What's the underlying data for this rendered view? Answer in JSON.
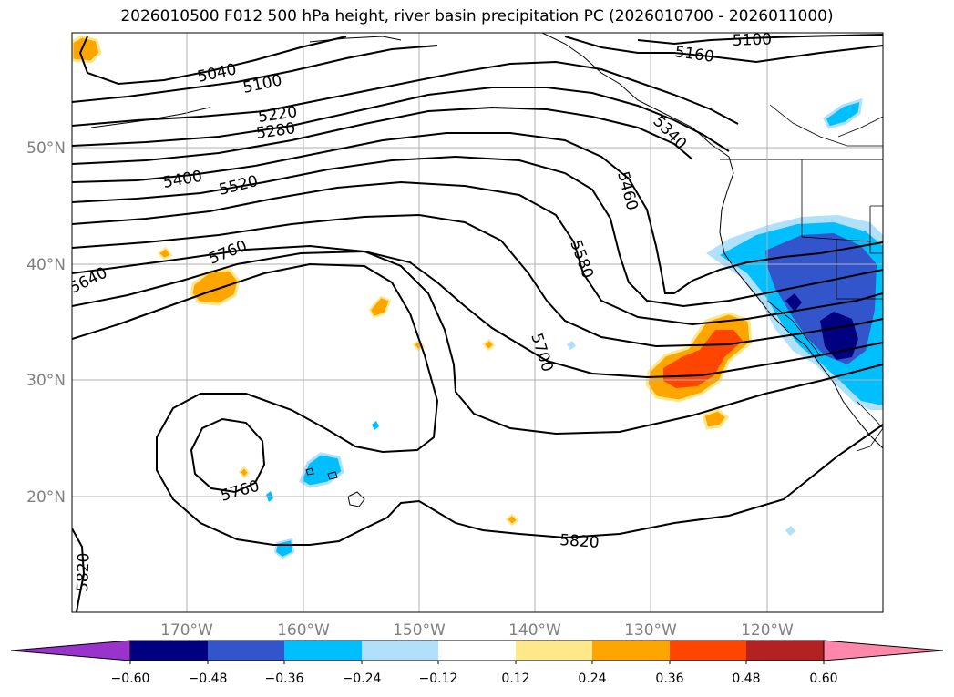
{
  "title": "2026010500 F012 500 hPa height, river basin precipitation PC (2026010700 - 2026011000)",
  "lat_labels": [
    "50°N",
    "40°N",
    "30°N",
    "20°N"
  ],
  "lon_labels": [
    "170°W",
    "160°W",
    "150°W",
    "140°W",
    "130°W",
    "120°W"
  ],
  "contour_labels": [
    "5100",
    "5160",
    "5040",
    "5100",
    "5220",
    "5280",
    "5340",
    "5400",
    "5520",
    "5460",
    "5580",
    "5640",
    "5760",
    "5700",
    "5760",
    "5820",
    "5820"
  ],
  "colorbar": {
    "ticks": [
      "−0.60",
      "−0.48",
      "−0.36",
      "−0.24",
      "−0.12",
      "0.12",
      "0.24",
      "0.36",
      "0.48",
      "0.60"
    ],
    "colors": [
      "#9933cc",
      "#000080",
      "#3355cc",
      "#00bfff",
      "#b0e0fa",
      "#ffffff",
      "#ffe88a",
      "#ffa500",
      "#ff4500",
      "#b22222",
      "#ff88aa"
    ]
  }
}
